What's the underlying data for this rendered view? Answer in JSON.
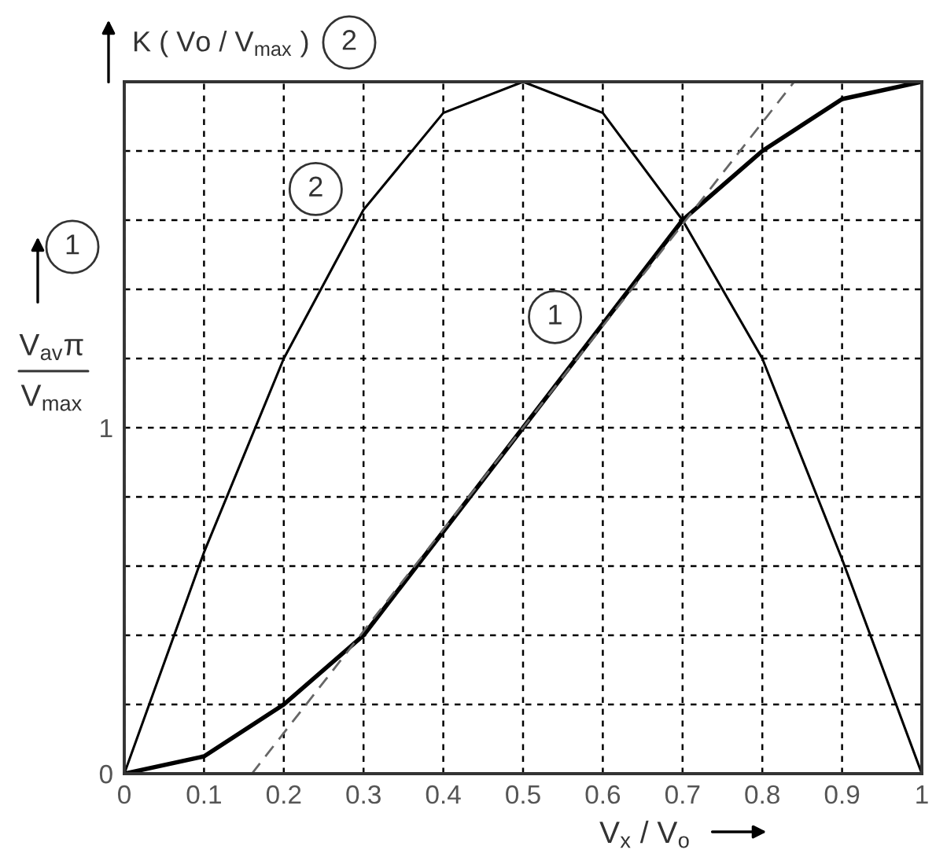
{
  "chart_data": {
    "type": "line",
    "xlabel": "V$_{x}$ / V$_{o}$",
    "ylabel": "V$_{av}$π\nV$_{max}$",
    "annotations": [
      "K ( Vo / V$_{max}$ )",
      "2",
      "1",
      {
        "text": "2",
        "x": 0.24,
        "y": 1.69
      },
      {
        "text": "1",
        "x": 0.54,
        "y": 1.32
      }
    ],
    "x": [
      0,
      0.1,
      0.2,
      0.3,
      0.4,
      0.5,
      0.6,
      0.7,
      0.8,
      0.9,
      1
    ],
    "series": [
      {
        "color": "#000000",
        "values": [
          0,
          0.05,
          0.2,
          0.4,
          0.7,
          1.0,
          1.3,
          1.6,
          1.8,
          1.95,
          2.0
        ]
      },
      {
        "color": "#000000",
        "values": [
          0,
          0.64,
          1.2,
          1.63,
          1.91,
          2.0,
          1.91,
          1.6,
          1.2,
          0.62,
          0
        ]
      },
      {
        "type": "line",
        "x": [
          0.16,
          0.84
        ],
        "values": [
          0,
          2.0
        ],
        "color": "#666666",
        "line_style": "dashed"
      }
    ],
    "line_style": "solid",
    "xlim": [
      0,
      1
    ],
    "ylim": [
      0,
      2
    ],
    "xticks": [
      0,
      0.1,
      0.2,
      0.3,
      0.4,
      0.5,
      0.6,
      0.7,
      0.8,
      0.9,
      1
    ],
    "yticks": [
      0,
      {
        "value": 0.2,
        "label": null
      },
      {
        "value": 0.4,
        "label": null
      },
      {
        "value": 0.6,
        "label": null
      },
      {
        "value": 0.8,
        "label": null
      },
      1,
      {
        "value": 1.2,
        "label": null
      },
      {
        "value": 1.4,
        "label": null
      },
      {
        "value": 1.6,
        "label": null
      },
      {
        "value": 1.8,
        "label": null
      }
    ],
    "grid": true
  }
}
